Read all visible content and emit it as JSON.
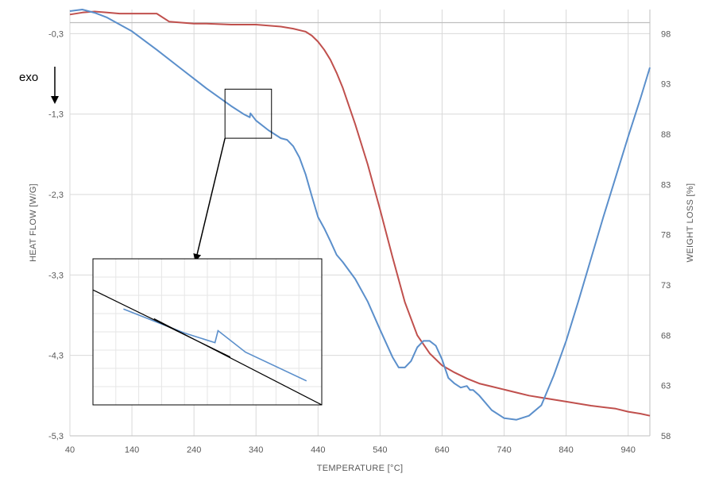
{
  "chart_data": {
    "type": "line",
    "xlabel": "TEMPERATURE [°C]",
    "ylabel_left": "HEAT FLOW [W/G]",
    "ylabel_right": "WEIGHT LOSS [%]",
    "annotation": "exo",
    "xlim": [
      40,
      975
    ],
    "ylim_left": [
      -5.3,
      0.0
    ],
    "ylim_right": [
      58,
      100.4
    ],
    "x_ticks": [
      40,
      140,
      240,
      340,
      440,
      540,
      640,
      740,
      840,
      940
    ],
    "y_left_ticks": [
      -0.3,
      -1.3,
      -2.3,
      -3.3,
      -4.3,
      -5.3
    ],
    "y_left_tick_labels": [
      "-0,3",
      "-1,3",
      "-2,3",
      "-3,3",
      "-4,3",
      "-5,3"
    ],
    "y_right_ticks": [
      98,
      93,
      88,
      83,
      78,
      73,
      68,
      63,
      58
    ],
    "grid": true,
    "legend": "none",
    "colors": {
      "heat_flow": "#5B8FCB",
      "weight_loss": "#C0504D",
      "inset_line": "#000000"
    },
    "series": [
      {
        "axis": "left",
        "x": [
          40,
          60,
          80,
          100,
          140,
          180,
          220,
          260,
          300,
          320,
          330,
          331,
          340,
          360,
          380,
          390,
          400,
          410,
          420,
          430,
          440,
          450,
          460,
          470,
          480,
          500,
          520,
          540,
          560,
          570,
          580,
          590,
          600,
          610,
          620,
          630,
          640,
          650,
          660,
          670,
          680,
          685,
          690,
          700,
          720,
          740,
          760,
          780,
          800,
          820,
          840,
          860,
          880,
          900,
          920,
          940,
          960,
          975
        ],
        "y": [
          -0.02,
          0.0,
          -0.04,
          -0.1,
          -0.27,
          -0.5,
          -0.74,
          -0.98,
          -1.2,
          -1.3,
          -1.34,
          -1.29,
          -1.38,
          -1.5,
          -1.6,
          -1.62,
          -1.7,
          -1.84,
          -2.05,
          -2.32,
          -2.58,
          -2.72,
          -2.88,
          -3.05,
          -3.14,
          -3.35,
          -3.63,
          -3.98,
          -4.32,
          -4.45,
          -4.45,
          -4.37,
          -4.2,
          -4.12,
          -4.12,
          -4.18,
          -4.35,
          -4.58,
          -4.65,
          -4.7,
          -4.68,
          -4.73,
          -4.73,
          -4.8,
          -4.98,
          -5.08,
          -5.1,
          -5.05,
          -4.92,
          -4.55,
          -4.12,
          -3.62,
          -3.1,
          -2.58,
          -2.08,
          -1.58,
          -1.1,
          -0.72
        ]
      },
      {
        "axis": "right",
        "x": [
          40,
          60,
          80,
          100,
          120,
          140,
          160,
          180,
          200,
          220,
          240,
          260,
          300,
          340,
          380,
          400,
          420,
          430,
          440,
          450,
          460,
          470,
          480,
          500,
          520,
          540,
          560,
          580,
          600,
          620,
          640,
          660,
          680,
          700,
          720,
          740,
          760,
          780,
          800,
          840,
          880,
          920,
          940,
          960,
          975
        ],
        "y": [
          99.9,
          100.1,
          100.2,
          100.1,
          100.0,
          100.0,
          100.0,
          100.0,
          99.2,
          99.1,
          99.0,
          99.0,
          98.9,
          98.9,
          98.7,
          98.5,
          98.2,
          97.8,
          97.2,
          96.4,
          95.4,
          94.1,
          92.6,
          89.0,
          85.0,
          80.5,
          75.8,
          71.3,
          68.0,
          66.2,
          65.0,
          64.3,
          63.7,
          63.2,
          62.9,
          62.6,
          62.3,
          62.0,
          61.8,
          61.4,
          61.0,
          60.7,
          60.4,
          60.2,
          60.0
        ]
      },
      {
        "axis": "right",
        "note_style": "flat reference line",
        "x": [
          40,
          975
        ],
        "y": [
          99.1,
          99.1
        ]
      }
    ],
    "inset": {
      "zoom_x": [
        290,
        365
      ],
      "zoom_y_left": [
        -0.99,
        -1.6
      ],
      "fit_lines": [
        {
          "x": [
            290,
            335
          ],
          "y": [
            -1.12,
            -1.4
          ]
        },
        {
          "x": [
            310,
            365
          ],
          "y": [
            -1.24,
            -1.6
          ]
        }
      ]
    }
  }
}
